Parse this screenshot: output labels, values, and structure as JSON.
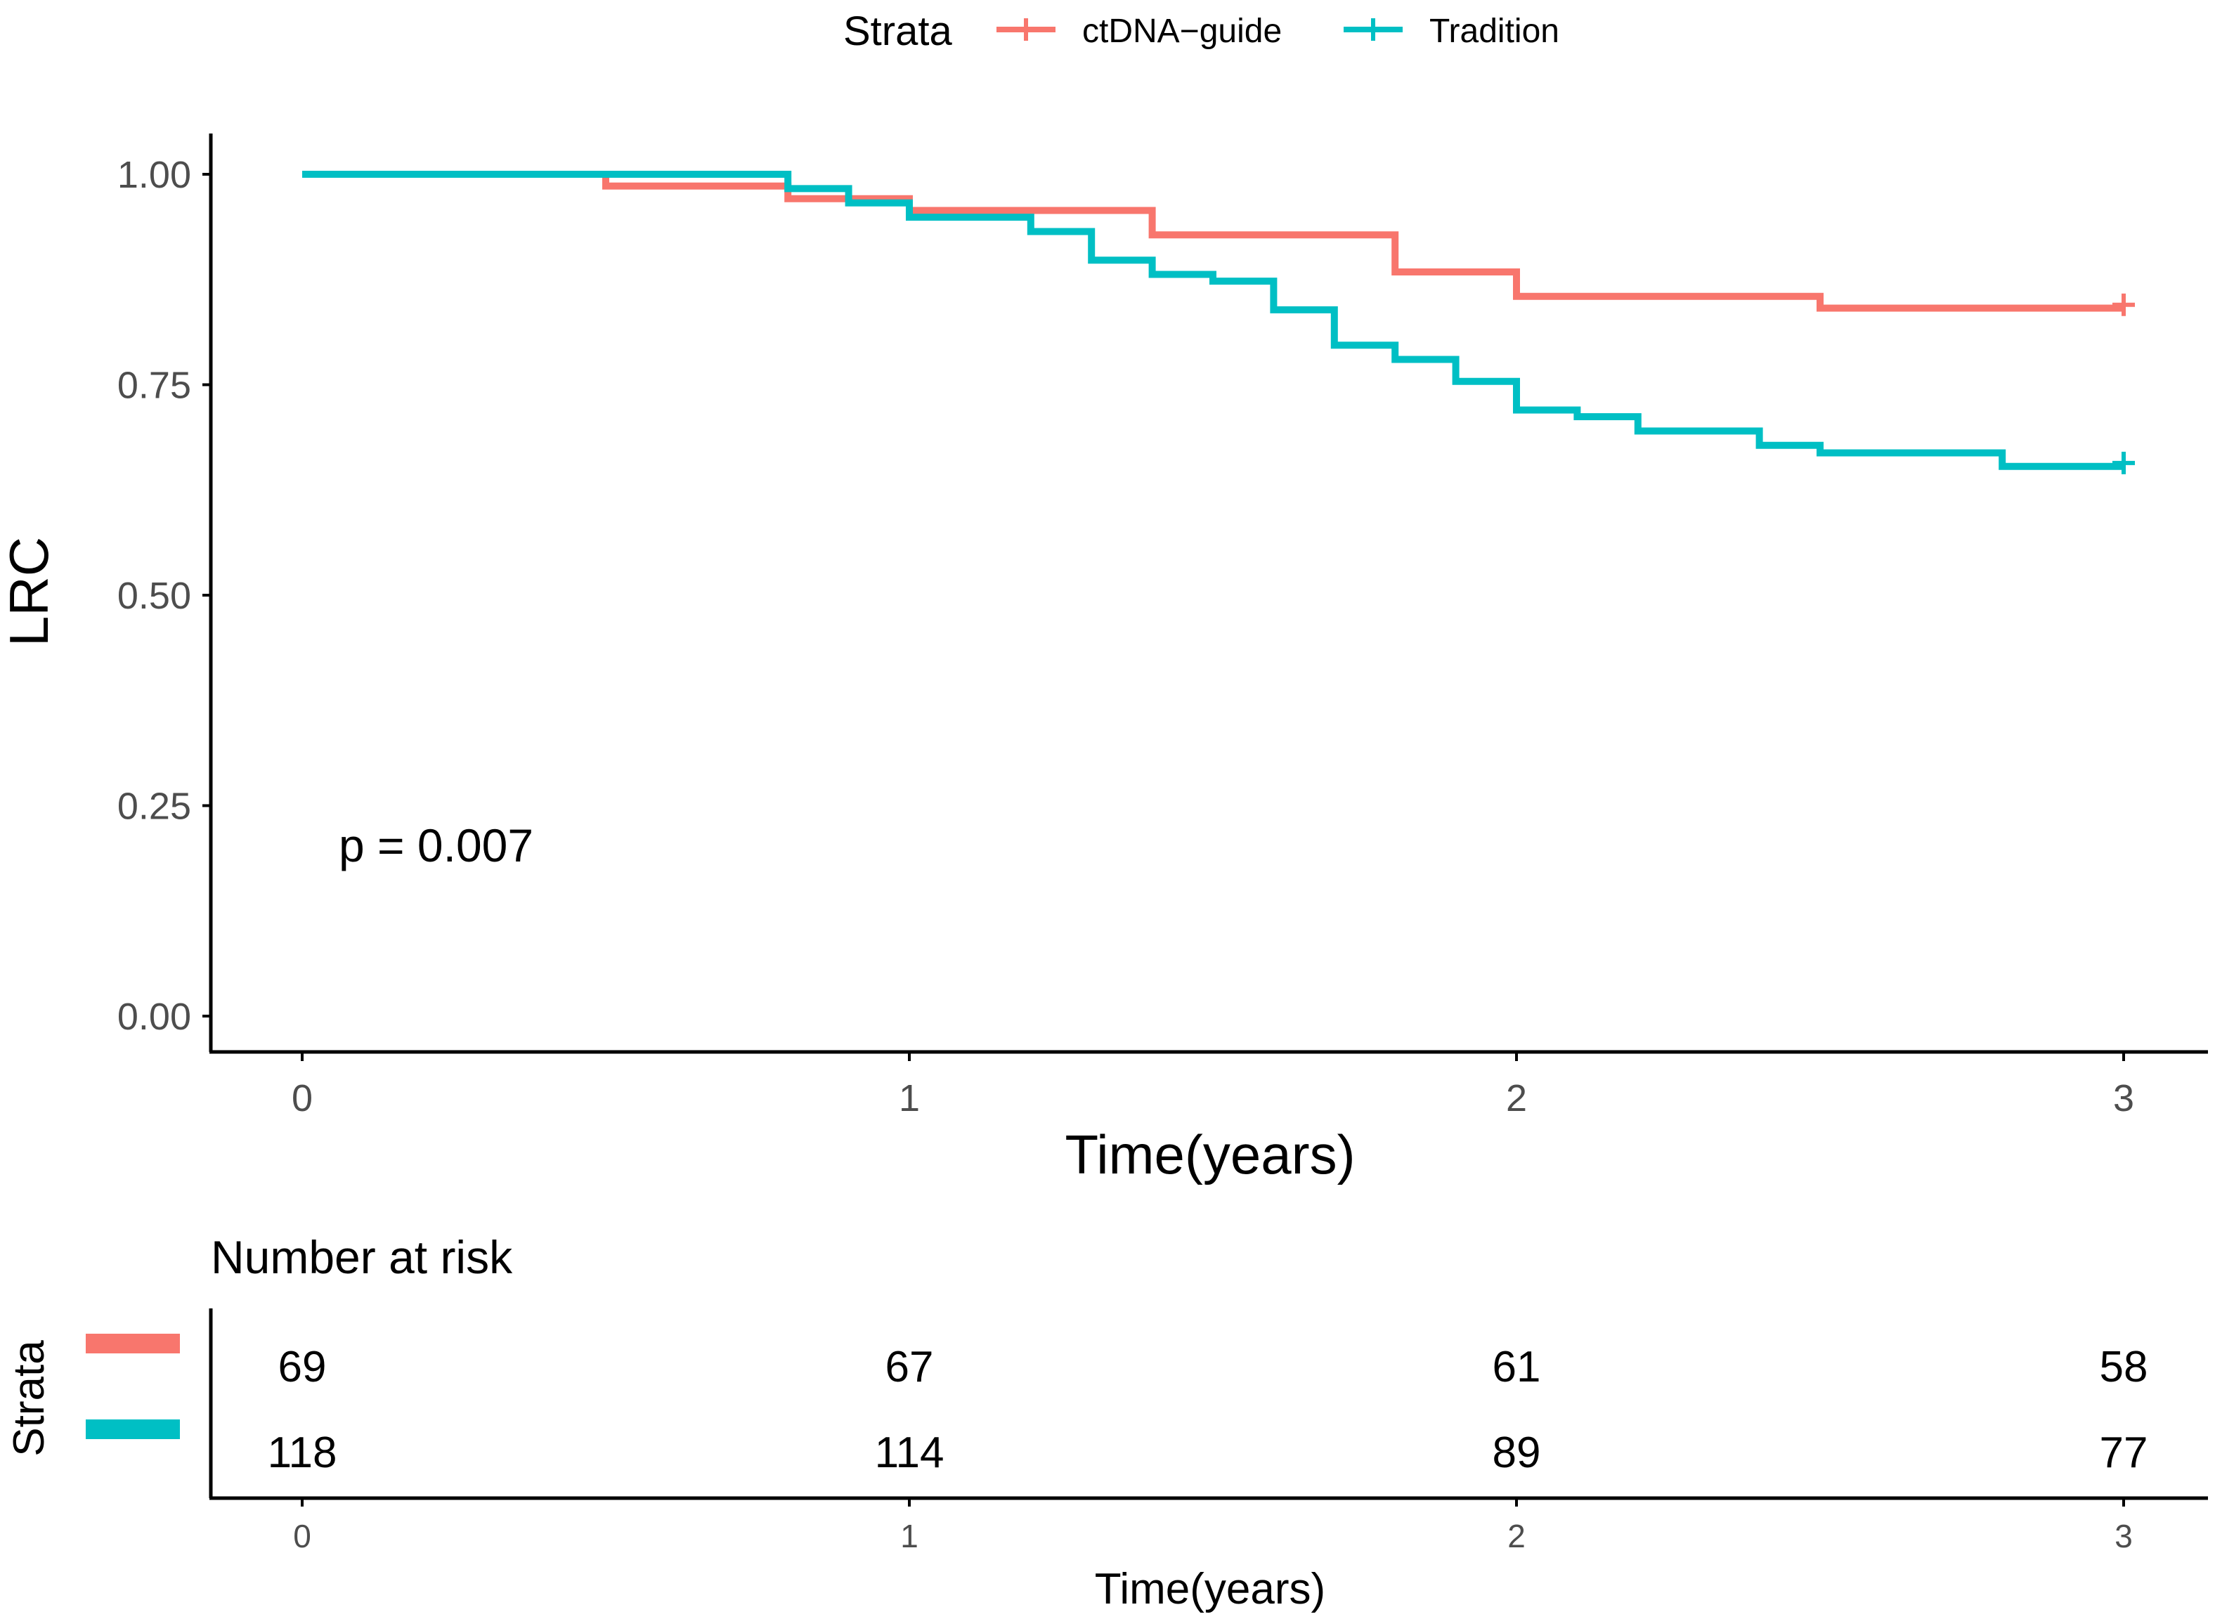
{
  "legend": {
    "title": "Strata",
    "entries": [
      {
        "label": "ctDNA−guide",
        "color": "#F8766D"
      },
      {
        "label": "Tradition",
        "color": "#00BFC4"
      }
    ]
  },
  "chart_data": {
    "type": "line",
    "subtype": "kaplan-meier step",
    "title": "",
    "xlabel": "Time(years)",
    "ylabel": "LRC",
    "xlim": [
      0,
      3
    ],
    "ylim": [
      0,
      1
    ],
    "x_ticks": [
      "0",
      "1",
      "2",
      "3"
    ],
    "y_ticks": [
      "0.00",
      "0.25",
      "0.50",
      "0.75",
      "1.00"
    ],
    "annotation": "p = 0.007",
    "series": [
      {
        "name": "ctDNA−guide",
        "color": "#F8766D",
        "x": [
          0,
          0.5,
          0.8,
          1.0,
          1.4,
          1.8,
          2.0,
          2.5,
          3.0
        ],
        "y": [
          1.0,
          0.986,
          0.971,
          0.957,
          0.928,
          0.884,
          0.855,
          0.841,
          0.841
        ],
        "censor": [
          [
            3.0,
            0.845
          ]
        ]
      },
      {
        "name": "Tradition",
        "color": "#00BFC4",
        "x": [
          0,
          0.8,
          0.9,
          1.0,
          1.2,
          1.3,
          1.4,
          1.5,
          1.6,
          1.7,
          1.8,
          1.9,
          2.0,
          2.1,
          2.2,
          2.4,
          2.5,
          2.8,
          3.0
        ],
        "y": [
          1.0,
          0.983,
          0.966,
          0.949,
          0.932,
          0.898,
          0.881,
          0.873,
          0.839,
          0.797,
          0.78,
          0.754,
          0.72,
          0.712,
          0.695,
          0.678,
          0.669,
          0.653,
          0.653
        ],
        "censor": [
          [
            3.0,
            0.657
          ]
        ]
      }
    ]
  },
  "risk_table": {
    "title": "Number at risk",
    "ylabel": "Strata",
    "xlabel": "Time(years)",
    "x_ticks": [
      "0",
      "1",
      "2",
      "3"
    ],
    "rows": [
      {
        "name": "ctDNA−guide",
        "color": "#F8766D",
        "values": [
          "69",
          "67",
          "61",
          "58"
        ]
      },
      {
        "name": "Tradition",
        "color": "#00BFC4",
        "values": [
          "118",
          "114",
          "89",
          "77"
        ]
      }
    ]
  }
}
